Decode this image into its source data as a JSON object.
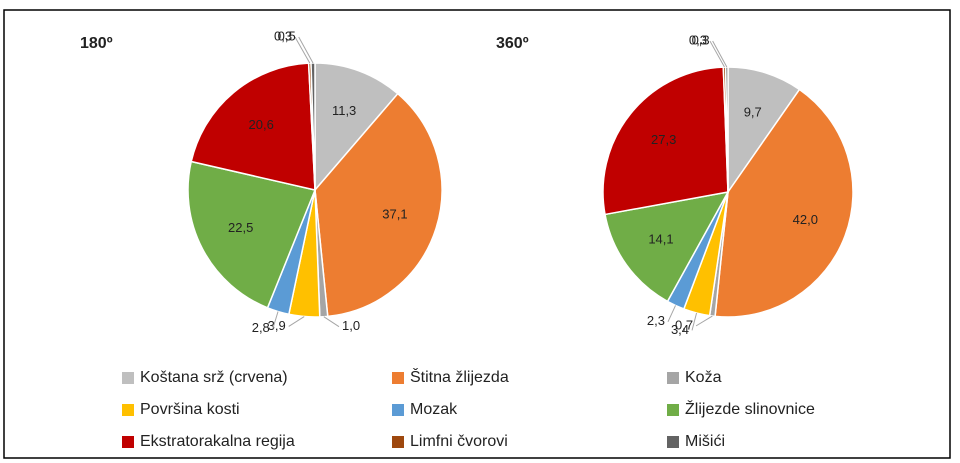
{
  "chart_data": [
    {
      "type": "pie",
      "title": "180º",
      "values": [
        11.3,
        37.1,
        1.0,
        3.9,
        2.8,
        22.5,
        20.6,
        0.3,
        0.5
      ],
      "value_labels": [
        "11,3",
        "37,1",
        "1,0",
        "3,9",
        "2,8",
        "22,5",
        "20,6",
        "0,3",
        "0,5"
      ]
    },
    {
      "type": "pie",
      "title": "360º",
      "values": [
        9.7,
        42.0,
        0.7,
        3.4,
        2.3,
        14.1,
        27.3,
        0.3,
        0.3
      ],
      "value_labels": [
        "9,7",
        "42,0",
        "0,7",
        "3,4",
        "2,3",
        "14,1",
        "27,3",
        "0,3",
        "0,3"
      ]
    }
  ],
  "legend": {
    "categories": [
      "Koštana srž (crvena)",
      "Štitna žlijezda",
      "Koža",
      "Površina kosti",
      "Mozak",
      "Žlijezde slinovnice",
      "Ekstratorakalna regija",
      "Limfni čvorovi",
      "Mišići"
    ],
    "colors": [
      "#bfbfbf",
      "#ed7d31",
      "#a5a5a5",
      "#ffc000",
      "#5b9bd5",
      "#70ad47",
      "#c00000",
      "#9e480e",
      "#636363"
    ]
  }
}
